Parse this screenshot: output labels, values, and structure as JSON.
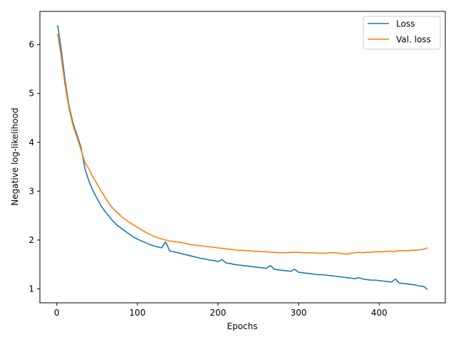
{
  "chart_data": {
    "type": "line",
    "title": "",
    "xlabel": "Epochs",
    "ylabel": "Negative log-likelihood",
    "xlim": [
      -21,
      482
    ],
    "ylim": [
      0.715,
      6.68
    ],
    "x_ticks": [
      0,
      100,
      200,
      300,
      400
    ],
    "y_ticks": [
      1,
      2,
      3,
      4,
      5,
      6
    ],
    "grid": false,
    "legend_position": "top-right",
    "series": [
      {
        "name": "Loss",
        "color": "#1f77b4",
        "x": [
          1,
          5,
          10,
          15,
          20,
          25,
          30,
          35,
          40,
          45,
          50,
          55,
          60,
          65,
          70,
          75,
          80,
          85,
          90,
          95,
          100,
          105,
          110,
          115,
          120,
          125,
          130,
          135,
          140,
          145,
          150,
          155,
          160,
          165,
          170,
          175,
          180,
          185,
          190,
          195,
          200,
          205,
          210,
          215,
          220,
          225,
          230,
          235,
          240,
          245,
          250,
          255,
          260,
          265,
          270,
          275,
          280,
          285,
          290,
          295,
          300,
          305,
          310,
          315,
          320,
          325,
          330,
          335,
          340,
          345,
          350,
          355,
          360,
          365,
          370,
          375,
          380,
          385,
          390,
          395,
          400,
          405,
          410,
          415,
          420,
          425,
          430,
          435,
          440,
          445,
          450,
          455,
          460
        ],
        "y": [
          6.4,
          5.95,
          5.3,
          4.75,
          4.4,
          4.15,
          3.9,
          3.45,
          3.2,
          3.0,
          2.85,
          2.7,
          2.58,
          2.48,
          2.38,
          2.3,
          2.24,
          2.18,
          2.12,
          2.06,
          2.02,
          1.98,
          1.95,
          1.91,
          1.88,
          1.86,
          1.84,
          1.96,
          1.78,
          1.76,
          1.74,
          1.72,
          1.7,
          1.68,
          1.66,
          1.64,
          1.62,
          1.61,
          1.59,
          1.58,
          1.56,
          1.6,
          1.53,
          1.52,
          1.5,
          1.49,
          1.48,
          1.47,
          1.46,
          1.45,
          1.44,
          1.43,
          1.42,
          1.48,
          1.4,
          1.39,
          1.38,
          1.37,
          1.36,
          1.4,
          1.34,
          1.33,
          1.32,
          1.31,
          1.3,
          1.29,
          1.29,
          1.28,
          1.27,
          1.26,
          1.25,
          1.24,
          1.23,
          1.22,
          1.21,
          1.23,
          1.2,
          1.19,
          1.18,
          1.18,
          1.17,
          1.16,
          1.15,
          1.14,
          1.2,
          1.12,
          1.11,
          1.1,
          1.09,
          1.08,
          1.06,
          1.05,
          0.99
        ]
      },
      {
        "name": "Val. loss",
        "color": "#ff7f0e",
        "x": [
          1,
          5,
          10,
          15,
          20,
          25,
          30,
          35,
          40,
          45,
          50,
          55,
          60,
          65,
          70,
          75,
          80,
          85,
          90,
          95,
          100,
          105,
          110,
          115,
          120,
          125,
          130,
          135,
          140,
          145,
          150,
          155,
          160,
          165,
          170,
          175,
          180,
          185,
          190,
          195,
          200,
          205,
          210,
          215,
          220,
          225,
          230,
          235,
          240,
          245,
          250,
          255,
          260,
          265,
          270,
          275,
          280,
          285,
          290,
          295,
          300,
          305,
          310,
          315,
          320,
          325,
          330,
          335,
          340,
          345,
          350,
          355,
          360,
          365,
          370,
          375,
          380,
          385,
          390,
          395,
          400,
          405,
          410,
          415,
          420,
          425,
          430,
          435,
          440,
          445,
          450,
          455,
          460
        ],
        "y": [
          6.22,
          5.8,
          5.2,
          4.7,
          4.35,
          4.1,
          3.85,
          3.58,
          3.45,
          3.28,
          3.15,
          3.0,
          2.87,
          2.74,
          2.64,
          2.56,
          2.48,
          2.42,
          2.36,
          2.31,
          2.26,
          2.21,
          2.16,
          2.12,
          2.08,
          2.05,
          2.02,
          2.0,
          1.98,
          1.97,
          1.96,
          1.95,
          1.93,
          1.91,
          1.9,
          1.89,
          1.88,
          1.87,
          1.86,
          1.85,
          1.84,
          1.83,
          1.82,
          1.81,
          1.8,
          1.79,
          1.79,
          1.78,
          1.78,
          1.77,
          1.77,
          1.76,
          1.76,
          1.75,
          1.75,
          1.74,
          1.74,
          1.74,
          1.75,
          1.75,
          1.75,
          1.74,
          1.74,
          1.74,
          1.74,
          1.73,
          1.73,
          1.73,
          1.74,
          1.74,
          1.73,
          1.72,
          1.71,
          1.73,
          1.74,
          1.75,
          1.74,
          1.75,
          1.75,
          1.76,
          1.76,
          1.76,
          1.77,
          1.77,
          1.77,
          1.78,
          1.78,
          1.78,
          1.79,
          1.79,
          1.8,
          1.81,
          1.84
        ]
      }
    ]
  }
}
